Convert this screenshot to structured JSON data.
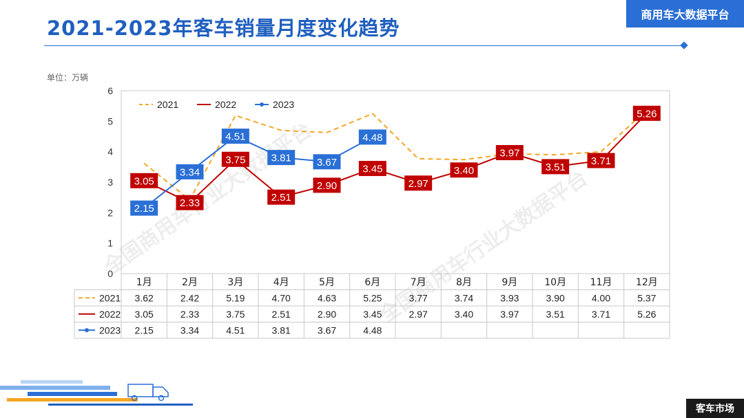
{
  "header": {
    "title": "2021-2023年客车销量月度变化趋势",
    "brand": "商用车大数据平台"
  },
  "unit_label": "单位：万辆",
  "watermark": "全国商用车行业大数据平台",
  "footer": {
    "tag": "客车市场"
  },
  "colors": {
    "s2021": "#f5a623",
    "s2022": "#c00000",
    "s2023": "#2a6fd6",
    "accent": "#2a6fd6"
  },
  "chart_data": {
    "type": "line",
    "title": "2021-2023年客车销量月度变化趋势",
    "ylabel": "单位：万辆",
    "ylim": [
      0,
      6
    ],
    "yticks": [
      0,
      1,
      2,
      3,
      4,
      5,
      6
    ],
    "legend": "top-left",
    "grid": false,
    "categories": [
      "1月",
      "2月",
      "3月",
      "4月",
      "5月",
      "6月",
      "7月",
      "8月",
      "9月",
      "10月",
      "11月",
      "12月"
    ],
    "series": [
      {
        "name": "2021",
        "values": [
          3.62,
          2.42,
          5.19,
          4.7,
          4.63,
          5.25,
          3.77,
          3.74,
          3.93,
          3.9,
          4.0,
          5.37
        ],
        "style": "dashed",
        "color": "#f5a623",
        "labeled": false
      },
      {
        "name": "2022",
        "values": [
          3.05,
          2.33,
          3.75,
          2.51,
          2.9,
          3.45,
          2.97,
          3.4,
          3.97,
          3.51,
          3.71,
          5.26
        ],
        "style": "solid",
        "color": "#c00000",
        "labeled": true
      },
      {
        "name": "2023",
        "values": [
          2.15,
          3.34,
          4.51,
          3.81,
          3.67,
          4.48,
          null,
          null,
          null,
          null,
          null,
          null
        ],
        "style": "solid-marker",
        "color": "#2a6fd6",
        "labeled": true
      }
    ]
  }
}
